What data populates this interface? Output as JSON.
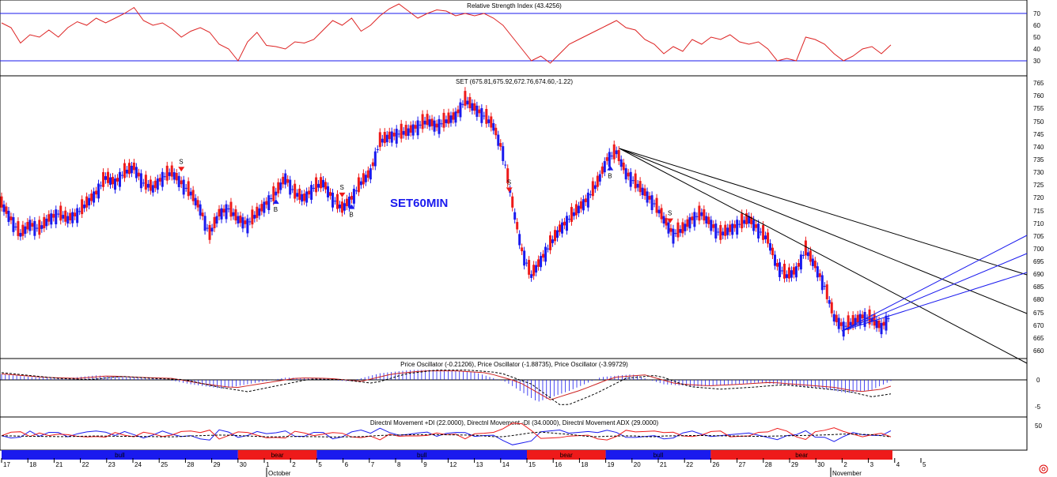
{
  "chart_data": {
    "type": "candlestick",
    "panels": {
      "rsi": {
        "title": "Relative Strength Index (43.4256)",
        "ticks": [
          "70",
          "60",
          "50",
          "40",
          "30"
        ],
        "levels": [
          70,
          30
        ],
        "series": [
          {
            "t": 0,
            "v": 62
          },
          {
            "t": 3,
            "v": 58
          },
          {
            "t": 6,
            "v": 45
          },
          {
            "t": 9,
            "v": 52
          },
          {
            "t": 12,
            "v": 50
          },
          {
            "t": 15,
            "v": 56
          },
          {
            "t": 18,
            "v": 50
          },
          {
            "t": 21,
            "v": 58
          },
          {
            "t": 24,
            "v": 63
          },
          {
            "t": 27,
            "v": 60
          },
          {
            "t": 30,
            "v": 66
          },
          {
            "t": 33,
            "v": 62
          },
          {
            "t": 36,
            "v": 66
          },
          {
            "t": 39,
            "v": 70
          },
          {
            "t": 42,
            "v": 75
          },
          {
            "t": 45,
            "v": 64
          },
          {
            "t": 48,
            "v": 60
          },
          {
            "t": 51,
            "v": 62
          },
          {
            "t": 54,
            "v": 57
          },
          {
            "t": 57,
            "v": 50
          },
          {
            "t": 60,
            "v": 55
          },
          {
            "t": 63,
            "v": 58
          },
          {
            "t": 66,
            "v": 54
          },
          {
            "t": 69,
            "v": 44
          },
          {
            "t": 72,
            "v": 40
          },
          {
            "t": 75,
            "v": 30
          },
          {
            "t": 78,
            "v": 46
          },
          {
            "t": 81,
            "v": 54
          },
          {
            "t": 84,
            "v": 43
          },
          {
            "t": 87,
            "v": 42
          },
          {
            "t": 90,
            "v": 40
          },
          {
            "t": 93,
            "v": 46
          },
          {
            "t": 96,
            "v": 45
          },
          {
            "t": 99,
            "v": 48
          },
          {
            "t": 102,
            "v": 56
          },
          {
            "t": 105,
            "v": 64
          },
          {
            "t": 108,
            "v": 60
          },
          {
            "t": 111,
            "v": 66
          },
          {
            "t": 114,
            "v": 55
          },
          {
            "t": 117,
            "v": 60
          },
          {
            "t": 120,
            "v": 68
          },
          {
            "t": 123,
            "v": 74
          },
          {
            "t": 126,
            "v": 78
          },
          {
            "t": 129,
            "v": 72
          },
          {
            "t": 132,
            "v": 66
          },
          {
            "t": 135,
            "v": 70
          },
          {
            "t": 138,
            "v": 73
          },
          {
            "t": 141,
            "v": 72
          },
          {
            "t": 144,
            "v": 68
          },
          {
            "t": 147,
            "v": 70
          },
          {
            "t": 150,
            "v": 68
          },
          {
            "t": 153,
            "v": 70
          },
          {
            "t": 156,
            "v": 66
          },
          {
            "t": 159,
            "v": 60
          },
          {
            "t": 162,
            "v": 50
          },
          {
            "t": 165,
            "v": 40
          },
          {
            "t": 168,
            "v": 30
          },
          {
            "t": 171,
            "v": 34
          },
          {
            "t": 174,
            "v": 28
          },
          {
            "t": 177,
            "v": 36
          },
          {
            "t": 180,
            "v": 44
          },
          {
            "t": 183,
            "v": 48
          },
          {
            "t": 186,
            "v": 52
          },
          {
            "t": 189,
            "v": 56
          },
          {
            "t": 192,
            "v": 60
          },
          {
            "t": 195,
            "v": 64
          },
          {
            "t": 198,
            "v": 58
          },
          {
            "t": 201,
            "v": 56
          },
          {
            "t": 204,
            "v": 48
          },
          {
            "t": 207,
            "v": 44
          },
          {
            "t": 210,
            "v": 36
          },
          {
            "t": 213,
            "v": 42
          },
          {
            "t": 216,
            "v": 38
          },
          {
            "t": 219,
            "v": 48
          },
          {
            "t": 222,
            "v": 44
          },
          {
            "t": 225,
            "v": 50
          },
          {
            "t": 228,
            "v": 48
          },
          {
            "t": 231,
            "v": 52
          },
          {
            "t": 234,
            "v": 46
          },
          {
            "t": 237,
            "v": 44
          },
          {
            "t": 240,
            "v": 46
          },
          {
            "t": 243,
            "v": 40
          },
          {
            "t": 246,
            "v": 30
          },
          {
            "t": 249,
            "v": 32
          },
          {
            "t": 252,
            "v": 30
          },
          {
            "t": 255,
            "v": 50
          },
          {
            "t": 258,
            "v": 48
          },
          {
            "t": 261,
            "v": 44
          },
          {
            "t": 264,
            "v": 36
          },
          {
            "t": 267,
            "v": 30
          },
          {
            "t": 270,
            "v": 34
          },
          {
            "t": 273,
            "v": 40
          },
          {
            "t": 276,
            "v": 42
          },
          {
            "t": 279,
            "v": 36
          },
          {
            "t": 282,
            "v": 43.4
          }
        ]
      },
      "price": {
        "title": "SET (675.81,675.92,672.76,674.60,-1.22)",
        "watermark": "SET60MIN",
        "ticks": [
          "765",
          "760",
          "755",
          "750",
          "745",
          "740",
          "735",
          "730",
          "725",
          "720",
          "715",
          "710",
          "705",
          "700",
          "695",
          "690",
          "685",
          "680",
          "675",
          "670",
          "665",
          "660"
        ],
        "series": [
          {
            "t": 0,
            "v": 718
          },
          {
            "t": 3,
            "v": 712
          },
          {
            "t": 6,
            "v": 706
          },
          {
            "t": 9,
            "v": 710
          },
          {
            "t": 12,
            "v": 708
          },
          {
            "t": 15,
            "v": 712
          },
          {
            "t": 18,
            "v": 714
          },
          {
            "t": 21,
            "v": 712
          },
          {
            "t": 24,
            "v": 714
          },
          {
            "t": 27,
            "v": 718
          },
          {
            "t": 30,
            "v": 722
          },
          {
            "t": 33,
            "v": 728
          },
          {
            "t": 36,
            "v": 726
          },
          {
            "t": 39,
            "v": 730
          },
          {
            "t": 42,
            "v": 732
          },
          {
            "t": 45,
            "v": 726
          },
          {
            "t": 48,
            "v": 724
          },
          {
            "t": 51,
            "v": 728
          },
          {
            "t": 54,
            "v": 730
          },
          {
            "t": 57,
            "v": 726
          },
          {
            "t": 60,
            "v": 722
          },
          {
            "t": 63,
            "v": 716
          },
          {
            "t": 66,
            "v": 706
          },
          {
            "t": 69,
            "v": 714
          },
          {
            "t": 72,
            "v": 716
          },
          {
            "t": 75,
            "v": 712
          },
          {
            "t": 78,
            "v": 710
          },
          {
            "t": 81,
            "v": 714
          },
          {
            "t": 84,
            "v": 718
          },
          {
            "t": 87,
            "v": 722
          },
          {
            "t": 90,
            "v": 728
          },
          {
            "t": 93,
            "v": 722
          },
          {
            "t": 96,
            "v": 720
          },
          {
            "t": 99,
            "v": 724
          },
          {
            "t": 102,
            "v": 726
          },
          {
            "t": 105,
            "v": 720
          },
          {
            "t": 108,
            "v": 716
          },
          {
            "t": 111,
            "v": 720
          },
          {
            "t": 114,
            "v": 726
          },
          {
            "t": 117,
            "v": 730
          },
          {
            "t": 120,
            "v": 742
          },
          {
            "t": 123,
            "v": 744
          },
          {
            "t": 126,
            "v": 745
          },
          {
            "t": 129,
            "v": 746
          },
          {
            "t": 132,
            "v": 748
          },
          {
            "t": 135,
            "v": 750
          },
          {
            "t": 138,
            "v": 748
          },
          {
            "t": 141,
            "v": 750
          },
          {
            "t": 144,
            "v": 752
          },
          {
            "t": 147,
            "v": 758
          },
          {
            "t": 150,
            "v": 755
          },
          {
            "t": 153,
            "v": 752
          },
          {
            "t": 156,
            "v": 748
          },
          {
            "t": 159,
            "v": 738
          },
          {
            "t": 162,
            "v": 718
          },
          {
            "t": 165,
            "v": 700
          },
          {
            "t": 168,
            "v": 690
          },
          {
            "t": 171,
            "v": 696
          },
          {
            "t": 174,
            "v": 702
          },
          {
            "t": 177,
            "v": 708
          },
          {
            "t": 180,
            "v": 712
          },
          {
            "t": 183,
            "v": 716
          },
          {
            "t": 186,
            "v": 720
          },
          {
            "t": 189,
            "v": 726
          },
          {
            "t": 192,
            "v": 735
          },
          {
            "t": 195,
            "v": 738
          },
          {
            "t": 198,
            "v": 730
          },
          {
            "t": 201,
            "v": 726
          },
          {
            "t": 204,
            "v": 722
          },
          {
            "t": 207,
            "v": 718
          },
          {
            "t": 210,
            "v": 712
          },
          {
            "t": 213,
            "v": 706
          },
          {
            "t": 216,
            "v": 708
          },
          {
            "t": 219,
            "v": 712
          },
          {
            "t": 222,
            "v": 714
          },
          {
            "t": 225,
            "v": 710
          },
          {
            "t": 228,
            "v": 706
          },
          {
            "t": 231,
            "v": 708
          },
          {
            "t": 234,
            "v": 710
          },
          {
            "t": 237,
            "v": 712
          },
          {
            "t": 240,
            "v": 708
          },
          {
            "t": 243,
            "v": 704
          },
          {
            "t": 246,
            "v": 694
          },
          {
            "t": 249,
            "v": 690
          },
          {
            "t": 252,
            "v": 692
          },
          {
            "t": 255,
            "v": 700
          },
          {
            "t": 258,
            "v": 694
          },
          {
            "t": 261,
            "v": 686
          },
          {
            "t": 264,
            "v": 674
          },
          {
            "t": 267,
            "v": 670
          },
          {
            "t": 270,
            "v": 672
          },
          {
            "t": 273,
            "v": 674
          },
          {
            "t": 276,
            "v": 673
          },
          {
            "t": 279,
            "v": 670
          },
          {
            "t": 282,
            "v": 674.6
          }
        ],
        "markers": [
          {
            "label": "S",
            "t": 57
          },
          {
            "label": "B",
            "t": 87
          },
          {
            "label": "S",
            "t": 108
          },
          {
            "label": "B",
            "t": 111
          },
          {
            "label": "S",
            "t": 161
          },
          {
            "label": "B",
            "t": 193
          },
          {
            "label": "S",
            "t": 212
          }
        ]
      },
      "oscillator": {
        "title": "Price Oscillator (-0.21206), Price Oscillator (-1.88735), Price Oscillator (-3.99729)",
        "ticks": [
          "0",
          "-5"
        ],
        "series": [
          {
            "t": 0,
            "v": 1.0
          },
          {
            "t": 10,
            "v": 0.5
          },
          {
            "t": 20,
            "v": 0.3
          },
          {
            "t": 30,
            "v": 0.8
          },
          {
            "t": 40,
            "v": 0.5
          },
          {
            "t": 50,
            "v": 0.3
          },
          {
            "t": 60,
            "v": -0.8
          },
          {
            "t": 70,
            "v": -1.6
          },
          {
            "t": 80,
            "v": -0.6
          },
          {
            "t": 90,
            "v": 0.4
          },
          {
            "t": 100,
            "v": 0.3
          },
          {
            "t": 110,
            "v": -0.3
          },
          {
            "t": 120,
            "v": 1.2
          },
          {
            "t": 130,
            "v": 1.8
          },
          {
            "t": 140,
            "v": 1.8
          },
          {
            "t": 150,
            "v": 1.4
          },
          {
            "t": 160,
            "v": -0.4
          },
          {
            "t": 170,
            "v": -4.0
          },
          {
            "t": 180,
            "v": -2.0
          },
          {
            "t": 190,
            "v": 0.5
          },
          {
            "t": 200,
            "v": 1.0
          },
          {
            "t": 210,
            "v": -0.8
          },
          {
            "t": 220,
            "v": -1.2
          },
          {
            "t": 230,
            "v": -0.9
          },
          {
            "t": 240,
            "v": -0.5
          },
          {
            "t": 250,
            "v": -1.0
          },
          {
            "t": 260,
            "v": -1.5
          },
          {
            "t": 268,
            "v": -2.4
          },
          {
            "t": 276,
            "v": -1.8
          },
          {
            "t": 282,
            "v": -0.2
          }
        ]
      },
      "dmi": {
        "title": "Directnl Movement +DI (22.0000), Directnl Movement -DI (34.0000), Directnl Movement ADX (29.0000)",
        "ticks": [
          "50"
        ]
      }
    },
    "x_axis": {
      "day_labels": [
        "17",
        "18",
        "21",
        "22",
        "23",
        "24",
        "25",
        "28",
        "29",
        "30",
        "1",
        "2",
        "5",
        "6",
        "7",
        "8",
        "9",
        "12",
        "13",
        "14",
        "15",
        "16",
        "18",
        "19",
        "20",
        "21",
        "22",
        "26",
        "27",
        "28",
        "29",
        "30",
        "2",
        "3",
        "4",
        "5"
      ],
      "month_labels": [
        "October",
        "November"
      ],
      "trend_bands": [
        {
          "label": "bull",
          "color": "#1a1aee",
          "from": 0,
          "to": 9
        },
        {
          "label": "bear",
          "color": "#ee1a1a",
          "from": 9,
          "to": 12
        },
        {
          "label": "bull",
          "color": "#1a1aee",
          "from": 12,
          "to": 20
        },
        {
          "label": "bear",
          "color": "#ee1a1a",
          "from": 20,
          "to": 23
        },
        {
          "label": "bull",
          "color": "#1a1aee",
          "from": 23,
          "to": 27
        },
        {
          "label": "bear",
          "color": "#ee1a1a",
          "from": 27,
          "to": 34
        }
      ]
    },
    "colors": {
      "up": "#1a1aee",
      "down": "#ee1a1a",
      "neutral": "#000000",
      "grid": "#1a1aee",
      "rsi": "#dd2222"
    }
  }
}
